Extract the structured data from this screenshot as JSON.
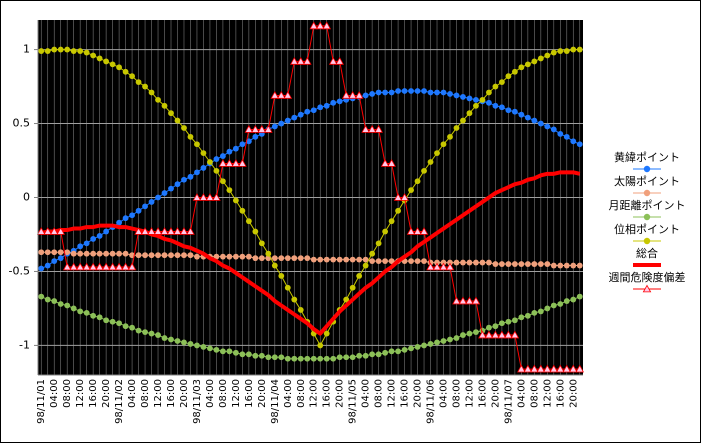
{
  "chart_data": {
    "type": "line",
    "categories": [
      "98/11/01",
      null,
      "04:00",
      null,
      "08:00",
      null,
      "12:00",
      null,
      "16:00",
      null,
      "20:00",
      null,
      "98/11/02",
      null,
      "04:00",
      null,
      "08:00",
      null,
      "12:00",
      null,
      "16:00",
      null,
      "20:00",
      null,
      "98/11/03",
      null,
      "04:00",
      null,
      "08:00",
      null,
      "12:00",
      null,
      "16:00",
      null,
      "20:00",
      null,
      "98/11/04",
      null,
      "04:00",
      null,
      "08:00",
      null,
      "12:00",
      null,
      "16:00",
      null,
      "20:00",
      null,
      "98/11/05",
      null,
      "04:00",
      null,
      "08:00",
      null,
      "12:00",
      null,
      "16:00",
      null,
      "20:00",
      null,
      "98/11/06",
      null,
      "04:00",
      null,
      "08:00",
      null,
      "12:00",
      null,
      "16:00",
      null,
      "20:00",
      null,
      "98/11/07",
      null,
      "04:00",
      null,
      "08:00",
      null,
      "12:00",
      null,
      "16:00",
      null,
      "20:00",
      null
    ],
    "ylim": [
      -1.2,
      1.2
    ],
    "yticks": [
      -1,
      -0.5,
      0,
      0.5,
      1
    ],
    "grid": true,
    "legend": "right",
    "series": [
      {
        "name": "黄緯ポイント",
        "color": "#1e78ff",
        "marker": "circle",
        "width": 1,
        "values": [
          -0.48,
          -0.46,
          -0.43,
          -0.41,
          -0.38,
          -0.36,
          -0.33,
          -0.31,
          -0.28,
          -0.26,
          -0.23,
          -0.2,
          -0.17,
          -0.14,
          -0.12,
          -0.09,
          -0.06,
          -0.03,
          0,
          0.03,
          0.06,
          0.09,
          0.12,
          0.14,
          0.17,
          0.2,
          0.23,
          0.26,
          0.28,
          0.31,
          0.33,
          0.36,
          0.38,
          0.41,
          0.43,
          0.46,
          0.48,
          0.5,
          0.52,
          0.54,
          0.56,
          0.58,
          0.59,
          0.61,
          0.62,
          0.64,
          0.65,
          0.66,
          0.67,
          0.68,
          0.69,
          0.7,
          0.71,
          0.71,
          0.71,
          0.72,
          0.72,
          0.72,
          0.72,
          0.72,
          0.71,
          0.71,
          0.71,
          0.7,
          0.69,
          0.68,
          0.67,
          0.66,
          0.65,
          0.64,
          0.62,
          0.61,
          0.59,
          0.58,
          0.56,
          0.54,
          0.52,
          0.5,
          0.48,
          0.46,
          0.43,
          0.41,
          0.38,
          0.36
        ]
      },
      {
        "name": "太陽ポイント",
        "color": "#f0a07c",
        "marker": "circle",
        "width": 1,
        "values": [
          -0.37,
          -0.37,
          -0.37,
          -0.37,
          -0.37,
          -0.38,
          -0.38,
          -0.38,
          -0.38,
          -0.38,
          -0.38,
          -0.38,
          -0.38,
          -0.38,
          -0.39,
          -0.39,
          -0.39,
          -0.39,
          -0.39,
          -0.39,
          -0.39,
          -0.39,
          -0.39,
          -0.39,
          -0.4,
          -0.4,
          -0.4,
          -0.4,
          -0.4,
          -0.4,
          -0.4,
          -0.4,
          -0.4,
          -0.41,
          -0.41,
          -0.41,
          -0.41,
          -0.41,
          -0.41,
          -0.41,
          -0.41,
          -0.41,
          -0.42,
          -0.42,
          -0.42,
          -0.42,
          -0.42,
          -0.42,
          -0.42,
          -0.42,
          -0.42,
          -0.43,
          -0.43,
          -0.43,
          -0.43,
          -0.43,
          -0.43,
          -0.43,
          -0.43,
          -0.43,
          -0.44,
          -0.44,
          -0.44,
          -0.44,
          -0.44,
          -0.44,
          -0.44,
          -0.44,
          -0.44,
          -0.44,
          -0.45,
          -0.45,
          -0.45,
          -0.45,
          -0.45,
          -0.45,
          -0.45,
          -0.45,
          -0.45,
          -0.46,
          -0.46,
          -0.46,
          -0.46,
          -0.46
        ]
      },
      {
        "name": "月距離ポイント",
        "color": "#8cc058",
        "marker": "circle",
        "width": 1,
        "values": [
          -0.67,
          -0.69,
          -0.7,
          -0.72,
          -0.73,
          -0.75,
          -0.77,
          -0.78,
          -0.8,
          -0.81,
          -0.83,
          -0.84,
          -0.85,
          -0.87,
          -0.88,
          -0.9,
          -0.91,
          -0.92,
          -0.93,
          -0.95,
          -0.96,
          -0.97,
          -0.98,
          -0.99,
          -1.0,
          -1.01,
          -1.02,
          -1.03,
          -1.04,
          -1.04,
          -1.05,
          -1.06,
          -1.06,
          -1.07,
          -1.07,
          -1.08,
          -1.08,
          -1.08,
          -1.09,
          -1.09,
          -1.09,
          -1.09,
          -1.09,
          -1.09,
          -1.09,
          -1.09,
          -1.08,
          -1.08,
          -1.08,
          -1.07,
          -1.07,
          -1.06,
          -1.06,
          -1.05,
          -1.04,
          -1.04,
          -1.03,
          -1.02,
          -1.01,
          -1.0,
          -0.99,
          -0.98,
          -0.97,
          -0.96,
          -0.95,
          -0.93,
          -0.92,
          -0.91,
          -0.9,
          -0.88,
          -0.87,
          -0.85,
          -0.84,
          -0.83,
          -0.81,
          -0.8,
          -0.78,
          -0.77,
          -0.75,
          -0.73,
          -0.72,
          -0.7,
          -0.69,
          -0.67
        ]
      },
      {
        "name": "位相ポイント",
        "color": "#c8c800",
        "marker": "circle",
        "width": 1,
        "values": [
          0.99,
          0.99,
          1.0,
          1.0,
          1.0,
          0.99,
          0.99,
          0.98,
          0.96,
          0.94,
          0.92,
          0.9,
          0.88,
          0.85,
          0.82,
          0.78,
          0.75,
          0.71,
          0.66,
          0.62,
          0.57,
          0.52,
          0.47,
          0.41,
          0.36,
          0.3,
          0.24,
          0.18,
          0.11,
          0.05,
          -0.02,
          -0.09,
          -0.16,
          -0.23,
          -0.31,
          -0.38,
          -0.46,
          -0.53,
          -0.61,
          -0.69,
          -0.76,
          -0.84,
          -0.92,
          -1.0,
          -0.92,
          -0.84,
          -0.76,
          -0.69,
          -0.61,
          -0.53,
          -0.46,
          -0.38,
          -0.31,
          -0.23,
          -0.16,
          -0.09,
          -0.02,
          0.05,
          0.11,
          0.18,
          0.24,
          0.3,
          0.36,
          0.41,
          0.47,
          0.52,
          0.57,
          0.62,
          0.66,
          0.71,
          0.75,
          0.78,
          0.82,
          0.85,
          0.88,
          0.9,
          0.92,
          0.94,
          0.96,
          0.98,
          0.99,
          0.99,
          1.0,
          1.0
        ]
      },
      {
        "name": "総合",
        "color": "#ff0000",
        "marker": "none",
        "width": 4,
        "values": [
          -0.24,
          -0.23,
          -0.23,
          -0.22,
          -0.22,
          -0.21,
          -0.21,
          -0.2,
          -0.2,
          -0.19,
          -0.19,
          -0.19,
          -0.2,
          -0.2,
          -0.21,
          -0.22,
          -0.23,
          -0.25,
          -0.26,
          -0.28,
          -0.29,
          -0.31,
          -0.33,
          -0.34,
          -0.36,
          -0.38,
          -0.41,
          -0.43,
          -0.46,
          -0.48,
          -0.51,
          -0.54,
          -0.57,
          -0.6,
          -0.63,
          -0.66,
          -0.7,
          -0.73,
          -0.76,
          -0.79,
          -0.82,
          -0.85,
          -0.89,
          -0.92,
          -0.87,
          -0.82,
          -0.77,
          -0.73,
          -0.69,
          -0.65,
          -0.61,
          -0.58,
          -0.54,
          -0.5,
          -0.47,
          -0.43,
          -0.4,
          -0.37,
          -0.33,
          -0.3,
          -0.27,
          -0.24,
          -0.21,
          -0.18,
          -0.15,
          -0.12,
          -0.09,
          -0.06,
          -0.03,
          0.0,
          0.03,
          0.05,
          0.07,
          0.09,
          0.1,
          0.12,
          0.13,
          0.15,
          0.16,
          0.16,
          0.17,
          0.17,
          0.17,
          0.16
        ]
      },
      {
        "name": "週間危険度偏差",
        "color": "#ff0000",
        "marker": "triangle",
        "marker_color": "#ffc8e8",
        "width": 1,
        "values": [
          -0.23,
          -0.23,
          -0.23,
          -0.23,
          -0.47,
          -0.47,
          -0.47,
          -0.47,
          -0.47,
          -0.47,
          -0.47,
          -0.47,
          -0.47,
          -0.47,
          -0.47,
          -0.23,
          -0.23,
          -0.23,
          -0.23,
          -0.23,
          -0.23,
          -0.23,
          -0.23,
          -0.23,
          0,
          0,
          0,
          0,
          0.23,
          0.23,
          0.23,
          0.23,
          0.46,
          0.46,
          0.46,
          0.46,
          0.69,
          0.69,
          0.69,
          0.92,
          0.92,
          0.92,
          1.16,
          1.16,
          1.16,
          0.92,
          0.92,
          0.69,
          0.69,
          0.69,
          0.46,
          0.46,
          0.46,
          0.23,
          0.23,
          0,
          0,
          -0.23,
          -0.23,
          -0.23,
          -0.47,
          -0.47,
          -0.47,
          -0.47,
          -0.7,
          -0.7,
          -0.7,
          -0.7,
          -0.93,
          -0.93,
          -0.93,
          -0.93,
          -0.93,
          -0.93,
          -1.16,
          -1.16,
          -1.16,
          -1.16,
          -1.16,
          -1.16,
          -1.16,
          -1.16,
          -1.16,
          -1.16
        ]
      }
    ]
  }
}
